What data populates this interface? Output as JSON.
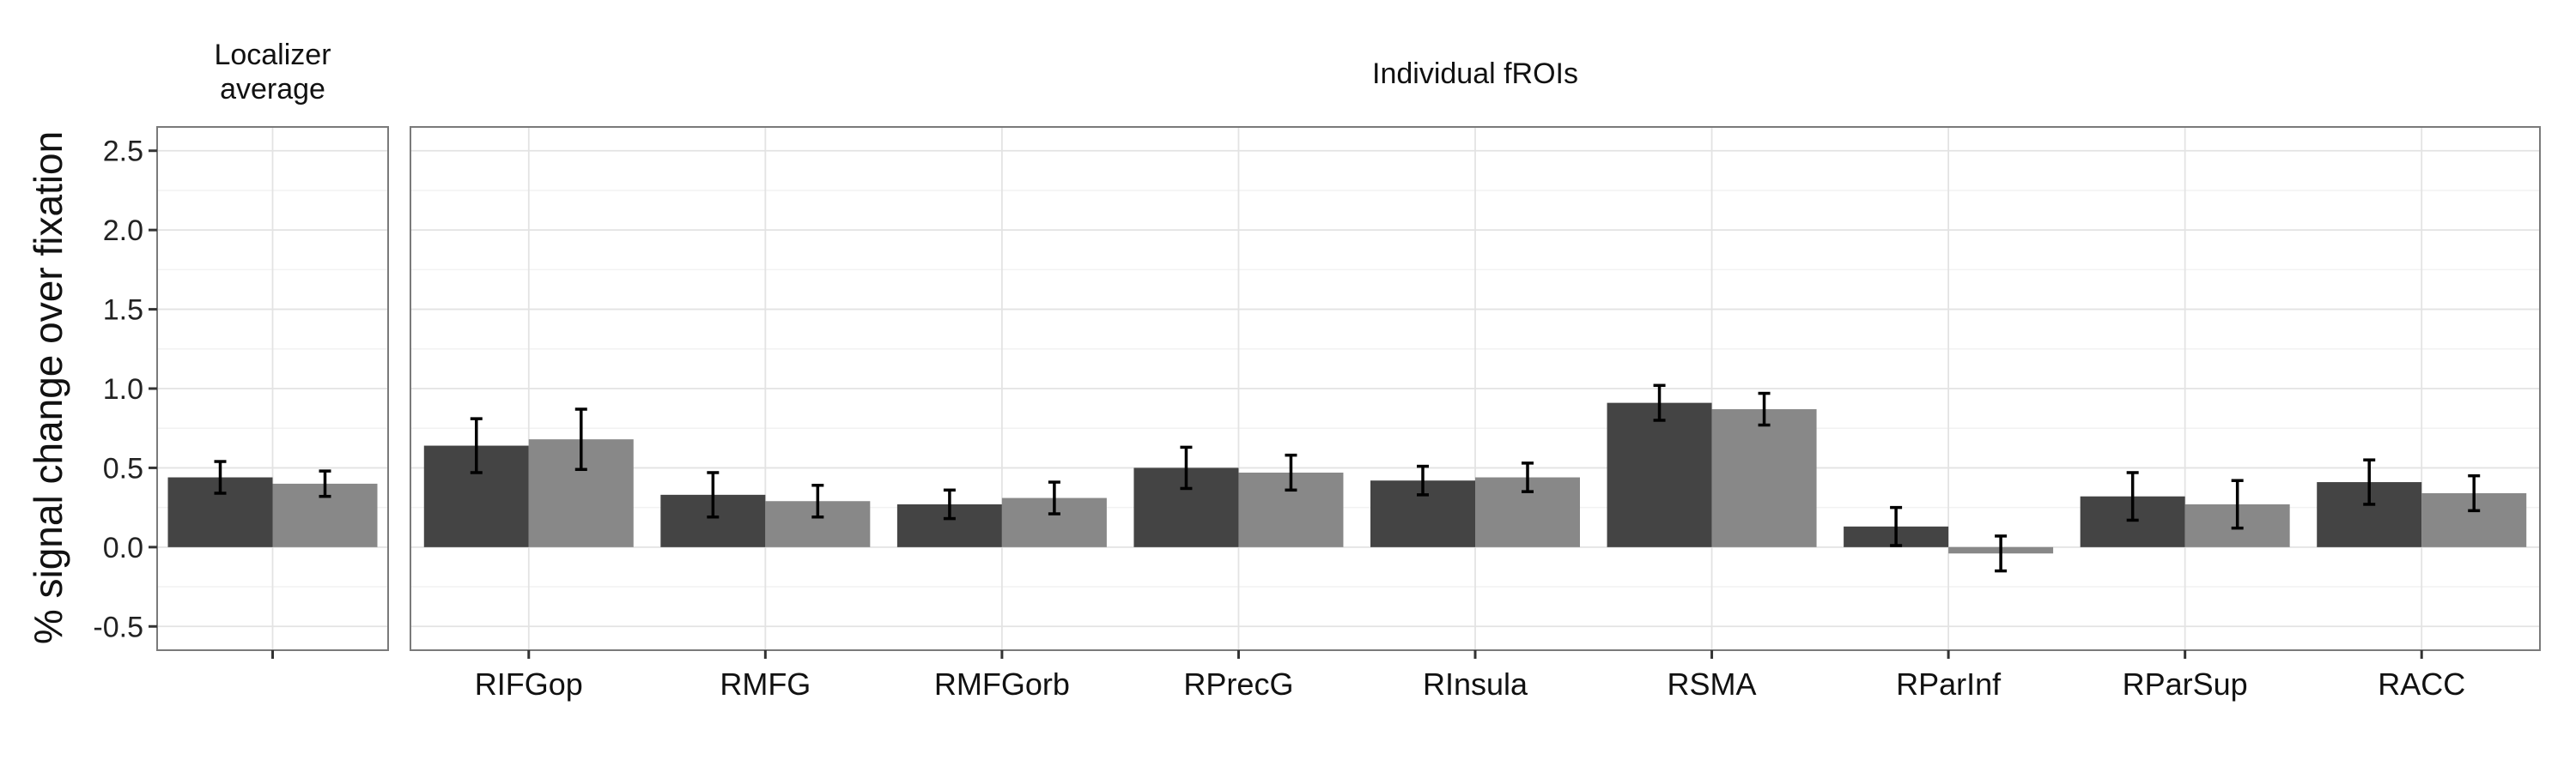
{
  "chart_data": {
    "type": "bar",
    "ylabel": "% signal change over fixation",
    "ylim": [
      -0.65,
      2.65
    ],
    "yticks": [
      -0.5,
      0.0,
      0.5,
      1.0,
      1.5,
      2.0,
      2.5
    ],
    "ytick_labels": [
      "-0.5",
      "0.0",
      "0.5",
      "1.0",
      "1.5",
      "2.0",
      "2.5"
    ],
    "grid": true,
    "series_colors": [
      "#444444",
      "#888888"
    ],
    "panels": [
      {
        "strip": [
          "Localizer",
          "average"
        ],
        "categories": [
          ""
        ],
        "series": [
          {
            "values": [
              0.44
            ],
            "err": [
              0.1
            ]
          },
          {
            "values": [
              0.4
            ],
            "err": [
              0.08
            ]
          }
        ]
      },
      {
        "strip": [
          "Individual fROIs"
        ],
        "categories": [
          "RIFGop",
          "RMFG",
          "RMFGorb",
          "RPrecG",
          "RInsula",
          "RSMA",
          "RParInf",
          "RParSup",
          "RACC"
        ],
        "series": [
          {
            "values": [
              0.64,
              0.33,
              0.27,
              0.5,
              0.42,
              0.91,
              0.13,
              0.32,
              0.41
            ],
            "err": [
              0.17,
              0.14,
              0.09,
              0.13,
              0.09,
              0.11,
              0.12,
              0.15,
              0.14
            ]
          },
          {
            "values": [
              0.68,
              0.29,
              0.31,
              0.47,
              0.44,
              0.87,
              -0.04,
              0.27,
              0.34
            ],
            "err": [
              0.19,
              0.1,
              0.1,
              0.11,
              0.09,
              0.1,
              0.11,
              0.15,
              0.11
            ]
          }
        ]
      }
    ]
  }
}
